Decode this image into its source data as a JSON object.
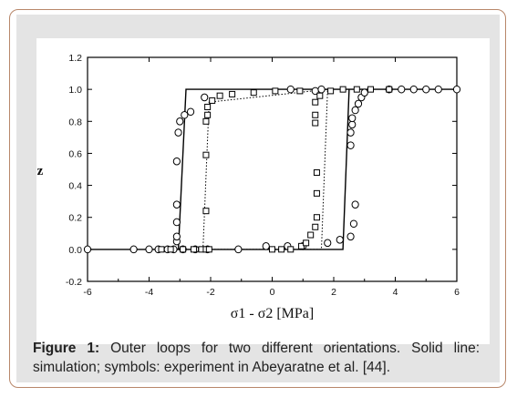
{
  "caption": {
    "label": "Figure 1:",
    "text": " Outer loops for two different orientations. Solid line: simulation; symbols: experiment in Abeyaratne et al. [44]."
  },
  "chart_data": {
    "type": "line",
    "title": "",
    "xlabel": "σ1 - σ2 [MPa]",
    "ylabel": "z",
    "xlim": [
      -6,
      6
    ],
    "ylim": [
      -0.2,
      1.2
    ],
    "xticks": [
      "-6",
      "-4",
      "-2",
      "0",
      "2",
      "4",
      "6"
    ],
    "yticks": [
      "-0.2",
      "0.0",
      "0.2",
      "0.4",
      "0.6",
      "0.8",
      "1.0",
      "1.2"
    ],
    "grid": false,
    "legend": "none",
    "series": [
      {
        "style": "solid",
        "points": [
          [
            -6,
            0
          ],
          [
            2.3,
            0
          ],
          [
            2.5,
            1
          ],
          [
            6,
            1
          ],
          [
            -2.8,
            1
          ],
          [
            -3.05,
            0
          ],
          [
            -6,
            0
          ]
        ]
      },
      {
        "style": "dotted",
        "points": [
          [
            -2.25,
            0
          ],
          [
            -2.05,
            0.92
          ],
          [
            1.8,
            1
          ],
          [
            1.6,
            0
          ],
          [
            -2.25,
            0
          ]
        ]
      },
      {
        "style": "circle",
        "points": [
          [
            -6,
            0
          ],
          [
            -4.5,
            0
          ],
          [
            -4.0,
            0
          ],
          [
            -3.7,
            0
          ],
          [
            -3.4,
            0
          ],
          [
            -3.2,
            0
          ],
          [
            -2.9,
            0
          ],
          [
            -2.5,
            0
          ],
          [
            -2.1,
            0
          ],
          [
            -1.1,
            0
          ],
          [
            -0.2,
            0.02
          ],
          [
            0.5,
            0.02
          ],
          [
            1.0,
            0.02
          ],
          [
            1.8,
            0.04
          ],
          [
            2.2,
            0.06
          ],
          [
            -3.1,
            0.05
          ],
          [
            -3.1,
            0.08
          ],
          [
            -3.1,
            0.17
          ],
          [
            -3.1,
            0.28
          ],
          [
            -3.1,
            0.55
          ],
          [
            -3.05,
            0.73
          ],
          [
            -3.0,
            0.8
          ],
          [
            -2.85,
            0.84
          ],
          [
            -2.65,
            0.86
          ],
          [
            2.55,
            0.08
          ],
          [
            2.65,
            0.16
          ],
          [
            2.7,
            0.28
          ],
          [
            2.55,
            0.65
          ],
          [
            2.55,
            0.73
          ],
          [
            2.6,
            0.78
          ],
          [
            2.6,
            0.82
          ],
          [
            2.7,
            0.87
          ],
          [
            2.8,
            0.91
          ],
          [
            2.9,
            0.95
          ],
          [
            3.0,
            0.98
          ],
          [
            -2.2,
            0.95
          ],
          [
            0.6,
            1
          ],
          [
            1.4,
            0.99
          ],
          [
            1.6,
            1
          ],
          [
            3.8,
            1
          ],
          [
            4.2,
            1
          ],
          [
            4.6,
            1
          ],
          [
            5.0,
            1
          ],
          [
            5.4,
            1
          ],
          [
            6.0,
            1
          ]
        ]
      },
      {
        "style": "square",
        "points": [
          [
            -3.6,
            0
          ],
          [
            -3.3,
            0
          ],
          [
            -2.9,
            0
          ],
          [
            -2.55,
            0
          ],
          [
            -2.3,
            0
          ],
          [
            -2.15,
            0
          ],
          [
            -2.05,
            0
          ],
          [
            0,
            0
          ],
          [
            0.3,
            0
          ],
          [
            0.6,
            0
          ],
          [
            0.95,
            0.02
          ],
          [
            1.1,
            0.04
          ],
          [
            1.25,
            0.09
          ],
          [
            1.4,
            0.14
          ],
          [
            -2.15,
            0.24
          ],
          [
            -2.15,
            0.59
          ],
          [
            -2.15,
            0.8
          ],
          [
            -2.1,
            0.84
          ],
          [
            -2.1,
            0.89
          ],
          [
            -1.95,
            0.93
          ],
          [
            -1.7,
            0.96
          ],
          [
            -1.3,
            0.97
          ],
          [
            -0.6,
            0.98
          ],
          [
            0.1,
            0.99
          ],
          [
            0.9,
            0.99
          ],
          [
            1.45,
            0.2
          ],
          [
            1.45,
            0.35
          ],
          [
            1.45,
            0.48
          ],
          [
            1.4,
            0.79
          ],
          [
            1.4,
            0.84
          ],
          [
            1.4,
            0.92
          ],
          [
            1.55,
            0.96
          ],
          [
            1.9,
            0.99
          ],
          [
            2.3,
            1
          ],
          [
            2.75,
            1
          ],
          [
            3.2,
            1
          ],
          [
            3.8,
            1
          ]
        ]
      }
    ]
  }
}
